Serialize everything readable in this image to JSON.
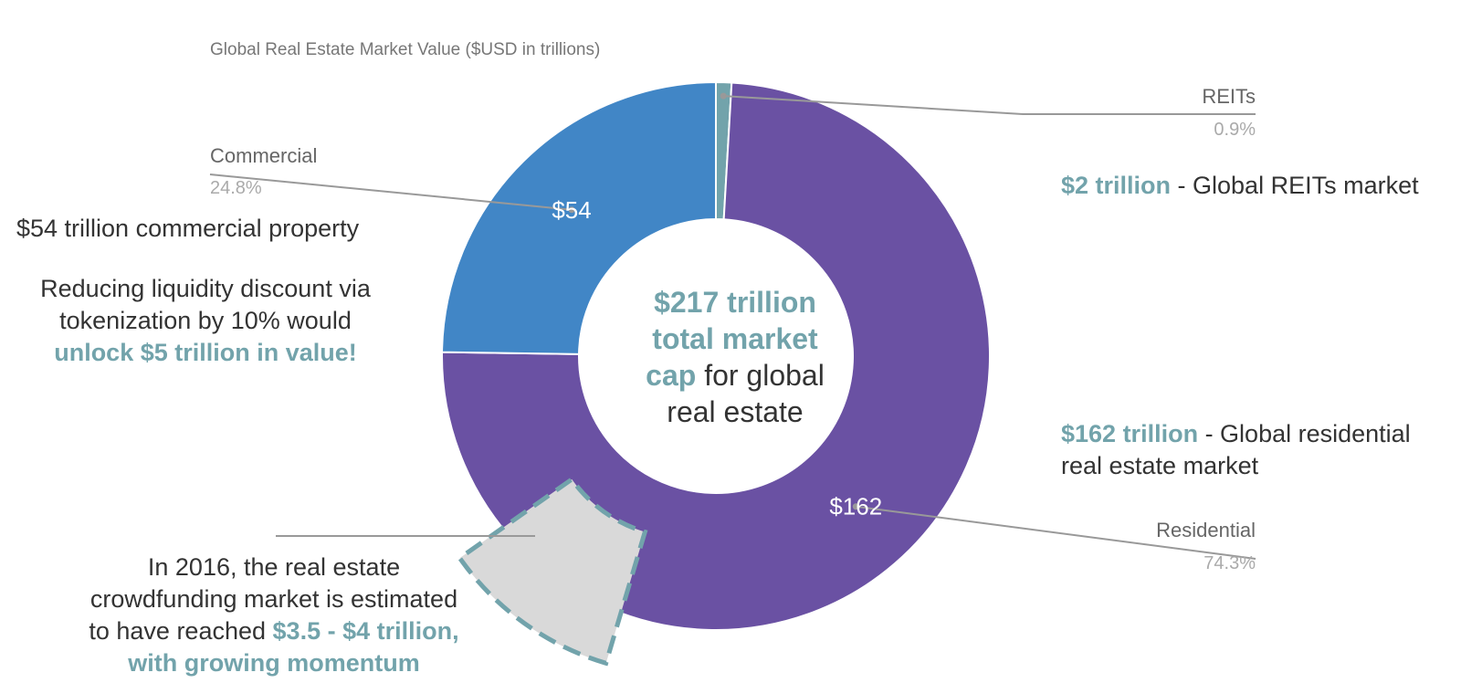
{
  "chart_data": {
    "type": "pie",
    "title": "Global Real Estate Market Value ($USD in trillions)",
    "slices": [
      {
        "name": "REITs",
        "value": 2,
        "percent": "0.9%",
        "color": "#72a3ab"
      },
      {
        "name": "Residential",
        "value": 162,
        "percent": "74.3%",
        "color": "#6a51a3",
        "value_label": "$162"
      },
      {
        "name": "Commercial",
        "value": 54,
        "percent": "24.8%",
        "color": "#4186c6",
        "value_label": "$54"
      }
    ],
    "highlight": {
      "name": "crowdfunding",
      "color": "#d9d9d9",
      "border_color": "#72a3ab"
    }
  },
  "center_text": {
    "line1_bold": "$217 trillion",
    "line2_bold": "total market",
    "line3_bold": "cap",
    "line3_rest": " for global",
    "line4": "real estate"
  },
  "annotations": {
    "reits_bold": "$2 trillion",
    "reits_rest": " - Global REITs market",
    "residential_bold": "$162 trillion",
    "residential_rest": " - Global residential",
    "residential_line2": "real estate market",
    "commercial_line": "$54 trillion commercial property",
    "liquidity_line1": "Reducing liquidity discount via",
    "liquidity_line2": "tokenization by 10% would",
    "liquidity_bold": "unlock $5 trillion in value!",
    "crowd_line1": "In 2016, the real estate",
    "crowd_line2": "crowdfunding market is estimated",
    "crowd_line3": "to have reached ",
    "crowd_bold1": "$3.5 - $4 trillion,",
    "crowd_bold2": "with growing momentum"
  }
}
